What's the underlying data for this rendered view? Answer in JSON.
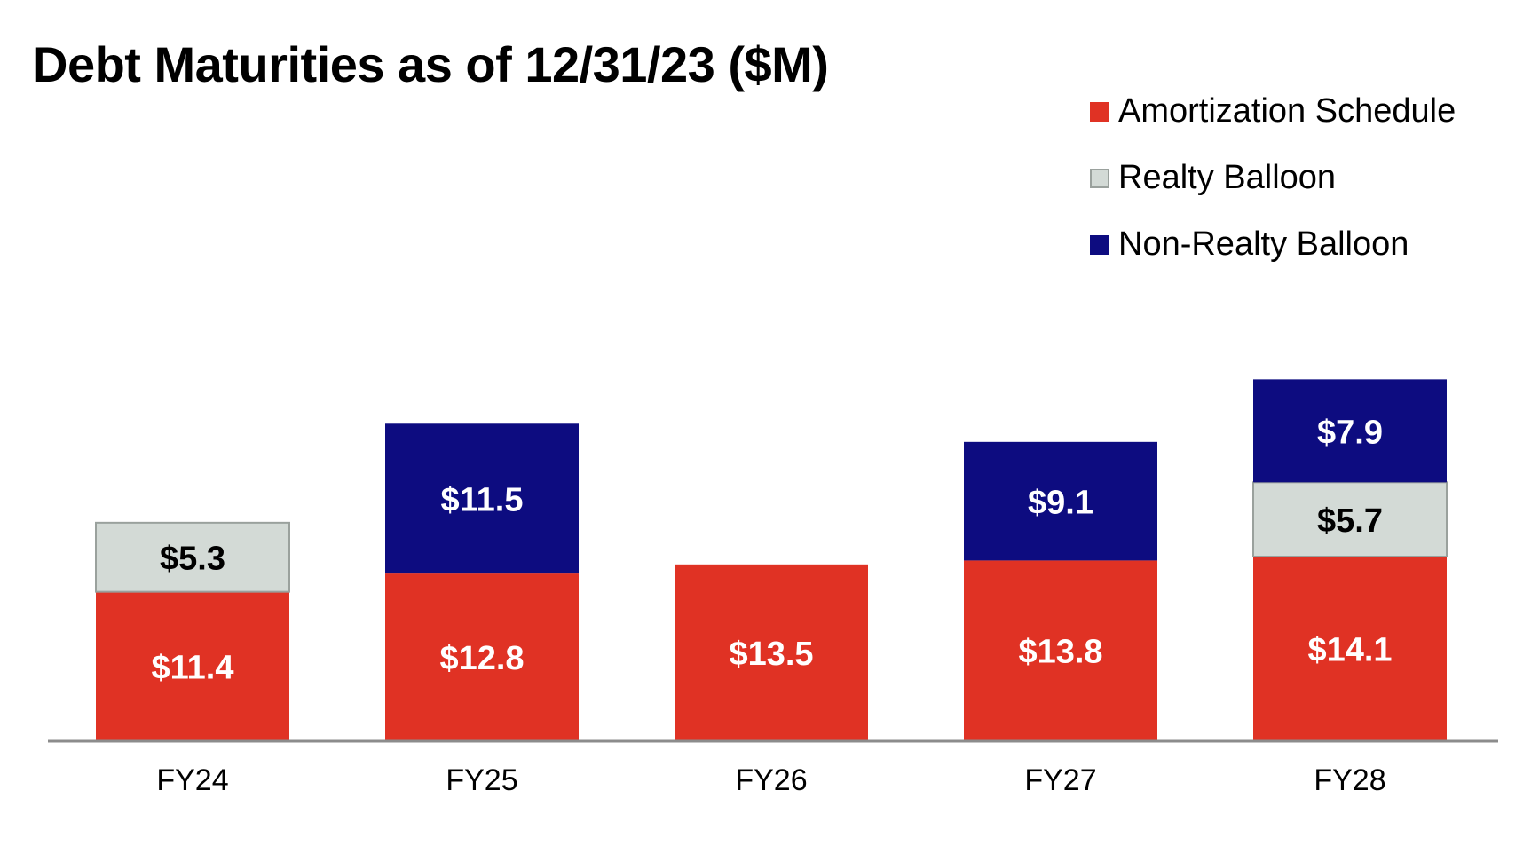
{
  "chart_data": {
    "type": "bar",
    "stacked": true,
    "title": "Debt Maturities as of 12/31/23 ($M)",
    "xlabel": "",
    "ylabel": "",
    "categories": [
      "FY24",
      "FY25",
      "FY26",
      "FY27",
      "FY28"
    ],
    "series": [
      {
        "name": "Amortization Schedule",
        "color": "#e03224",
        "label_color": "#ffffff",
        "values": [
          11.4,
          12.8,
          13.5,
          13.8,
          14.1
        ],
        "labels": [
          "$11.4",
          "$12.8",
          "$13.5",
          "$13.8",
          "$14.1"
        ]
      },
      {
        "name": "Realty Balloon",
        "color": "#d3dad6",
        "label_color": "#000000",
        "values": [
          5.3,
          null,
          null,
          null,
          5.7
        ],
        "labels": [
          "$5.3",
          null,
          null,
          null,
          "$5.7"
        ]
      },
      {
        "name": "Non-Realty Balloon",
        "color": "#0d0c80",
        "label_color": "#ffffff",
        "values": [
          null,
          11.5,
          null,
          9.1,
          7.9
        ],
        "labels": [
          null,
          "$11.5",
          null,
          "$9.1",
          "$7.9"
        ]
      }
    ],
    "legend_position": "top-right",
    "grid": false
  }
}
